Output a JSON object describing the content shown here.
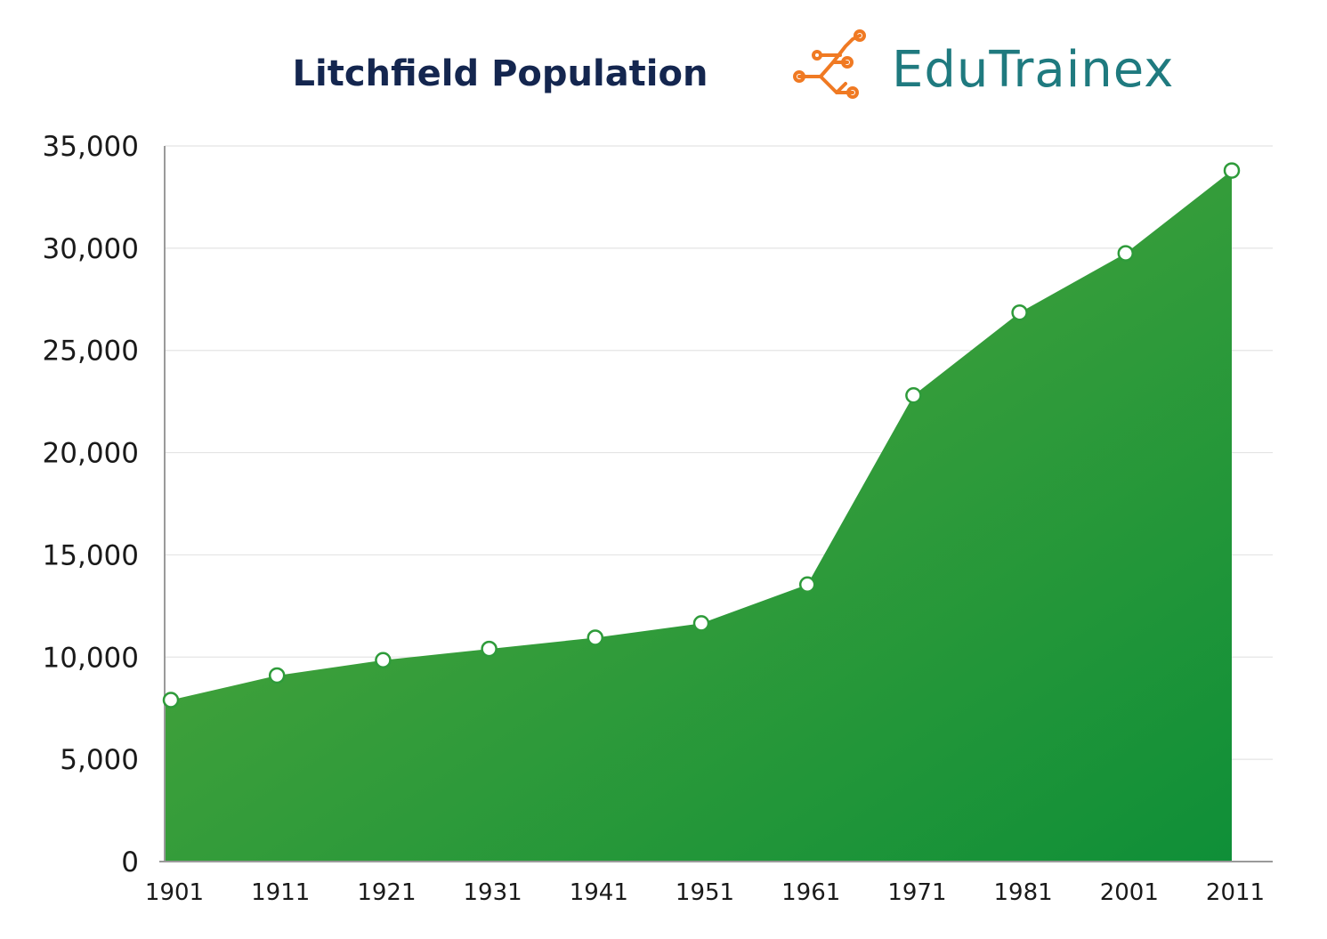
{
  "chart_data": {
    "type": "area",
    "title": "Litchfield Population",
    "xlabel": "",
    "ylabel": "",
    "categories": [
      "1901",
      "1911",
      "1921",
      "1931",
      "1941",
      "1951",
      "1961",
      "1971",
      "1981",
      "2001",
      "2011"
    ],
    "values": [
      7900,
      9100,
      9850,
      10400,
      10950,
      11650,
      13550,
      22800,
      26850,
      29750,
      33800
    ],
    "ylim": [
      0,
      35000
    ],
    "yticks": [
      0,
      5000,
      10000,
      15000,
      20000,
      25000,
      30000,
      35000
    ],
    "ytick_labels": [
      "0",
      "5,000",
      "10,000",
      "15,000",
      "20,000",
      "25,000",
      "30,000",
      "35,000"
    ],
    "grid": true,
    "legend": "none"
  },
  "brand": {
    "text": "EduTrainex",
    "logo_icon": "circuit-node-icon"
  },
  "colors": {
    "fill_top": "#5aaa3c",
    "fill_bottom": "#0f8f38",
    "title": "#14264f",
    "brand_text": "#1f7a7f",
    "brand_icon": "#f07a23"
  }
}
